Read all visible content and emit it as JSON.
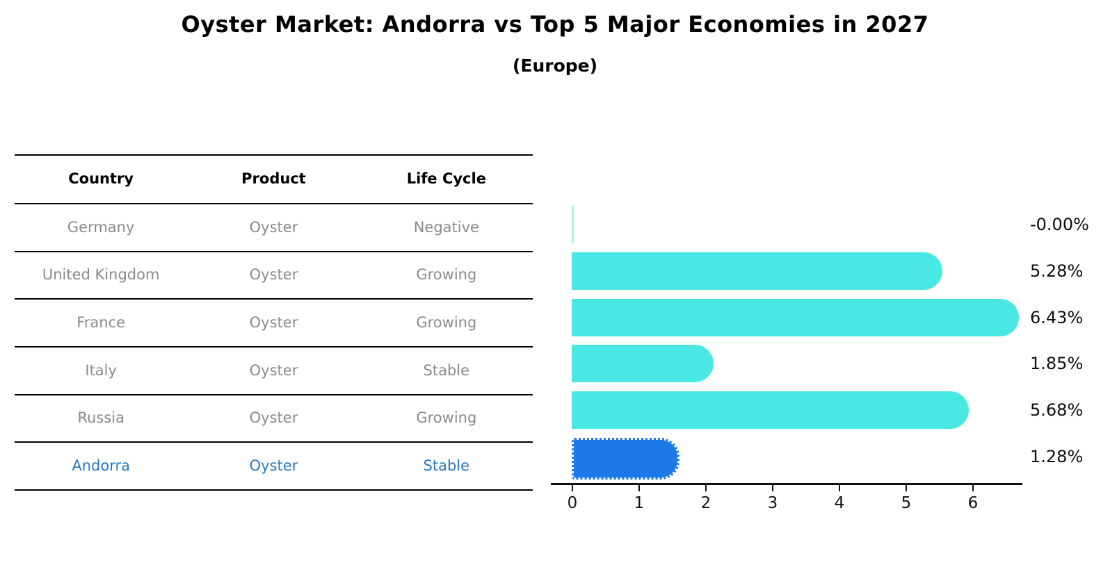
{
  "title": "Oyster Market: Andorra vs Top 5 Major Economies in 2027",
  "subtitle": "(Europe)",
  "table": {
    "headers": [
      "Country",
      "Product",
      "Life Cycle"
    ],
    "rows": [
      {
        "country": "Germany",
        "product": "Oyster",
        "life_cycle": "Negative",
        "highlight": false
      },
      {
        "country": "United Kingdom",
        "product": "Oyster",
        "life_cycle": "Growing",
        "highlight": false
      },
      {
        "country": "France",
        "product": "Oyster",
        "life_cycle": "Growing",
        "highlight": false
      },
      {
        "country": "Italy",
        "product": "Oyster",
        "life_cycle": "Stable",
        "highlight": false
      },
      {
        "country": "Russia",
        "product": "Oyster",
        "life_cycle": "Growing",
        "highlight": false
      },
      {
        "country": "Andorra",
        "product": "Oyster",
        "life_cycle": "Stable",
        "highlight": true
      }
    ]
  },
  "chart_data": {
    "type": "bar",
    "orientation": "horizontal",
    "categories": [
      "Germany",
      "United Kingdom",
      "France",
      "Italy",
      "Russia",
      "Andorra"
    ],
    "values": [
      -0.0,
      5.28,
      6.43,
      1.85,
      5.68,
      1.28
    ],
    "value_labels": [
      "-0.00%",
      "5.28%",
      "6.43%",
      "1.85%",
      "5.68%",
      "1.28%"
    ],
    "xticks": [
      "0",
      "1",
      "2",
      "3",
      "4",
      "5",
      "6"
    ],
    "xlim": [
      -0.32,
      6.75
    ],
    "grid": false,
    "legend": "none",
    "bar_color": "#4ae8e4",
    "highlight_color": "#1d79e8",
    "highlight_index": 5,
    "highlight_border_style": "dotted",
    "title": "Oyster Market: Andorra vs Top 5 Major Economies in 2027",
    "subtitle": "(Europe)",
    "xlabel": "",
    "ylabel": ""
  }
}
